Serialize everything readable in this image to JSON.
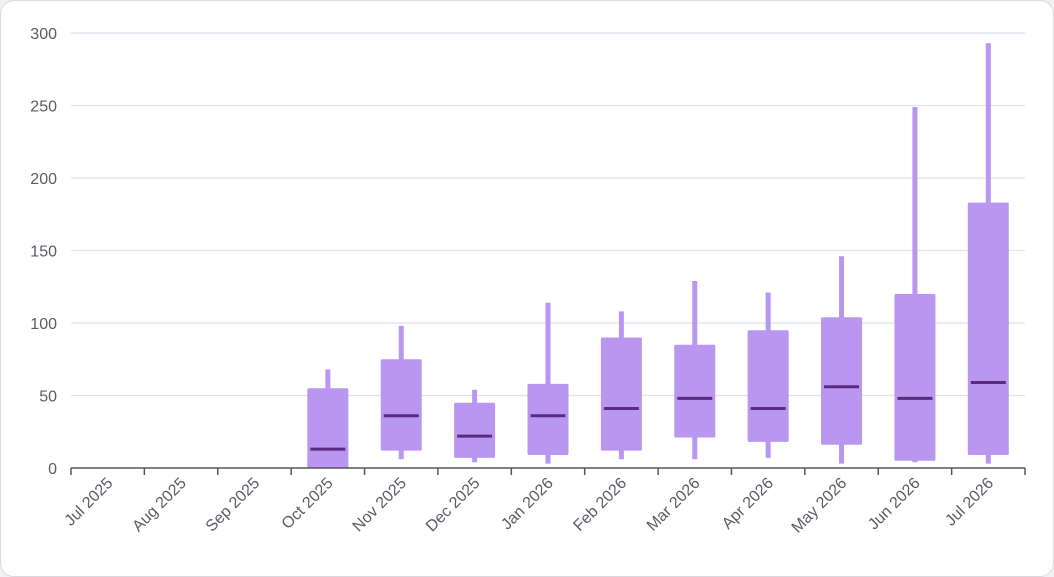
{
  "chart_data": {
    "type": "boxplot",
    "title": "",
    "xlabel": "",
    "ylabel": "",
    "ylim": [
      0,
      300
    ],
    "yticks": [
      "0",
      "50",
      "100",
      "150",
      "200",
      "250",
      "300"
    ],
    "categories": [
      "Jul 2025",
      "Aug 2025",
      "Sep 2025",
      "Oct 2025",
      "Nov 2025",
      "Dec 2025",
      "Jan 2026",
      "Feb 2026",
      "Mar 2026",
      "Apr 2026",
      "May 2026",
      "Jun 2026",
      "Jul 2026"
    ],
    "boxes": [
      null,
      null,
      null,
      {
        "min": 0,
        "q1": 0,
        "median": 13,
        "q3": 55,
        "max": 68
      },
      {
        "min": 6,
        "q1": 12,
        "median": 36,
        "q3": 75,
        "max": 98
      },
      {
        "min": 4,
        "q1": 7,
        "median": 22,
        "q3": 45,
        "max": 54
      },
      {
        "min": 3,
        "q1": 9,
        "median": 36,
        "q3": 58,
        "max": 114
      },
      {
        "min": 6,
        "q1": 12,
        "median": 41,
        "q3": 90,
        "max": 108
      },
      {
        "min": 6,
        "q1": 21,
        "median": 48,
        "q3": 85,
        "max": 129
      },
      {
        "min": 7,
        "q1": 18,
        "median": 41,
        "q3": 95,
        "max": 121
      },
      {
        "min": 3,
        "q1": 16,
        "median": 56,
        "q3": 104,
        "max": 146
      },
      {
        "min": 4,
        "q1": 5,
        "median": 48,
        "q3": 120,
        "max": 249
      },
      {
        "min": 3,
        "q1": 9,
        "median": 59,
        "q3": 183,
        "max": 293
      }
    ],
    "grid": true,
    "legend": "none",
    "colors": {
      "box": "#b996f0",
      "median": "#5b2b7f",
      "grid": "#e1e1f1",
      "axis": "#555560",
      "label": "#5b5b66"
    }
  }
}
